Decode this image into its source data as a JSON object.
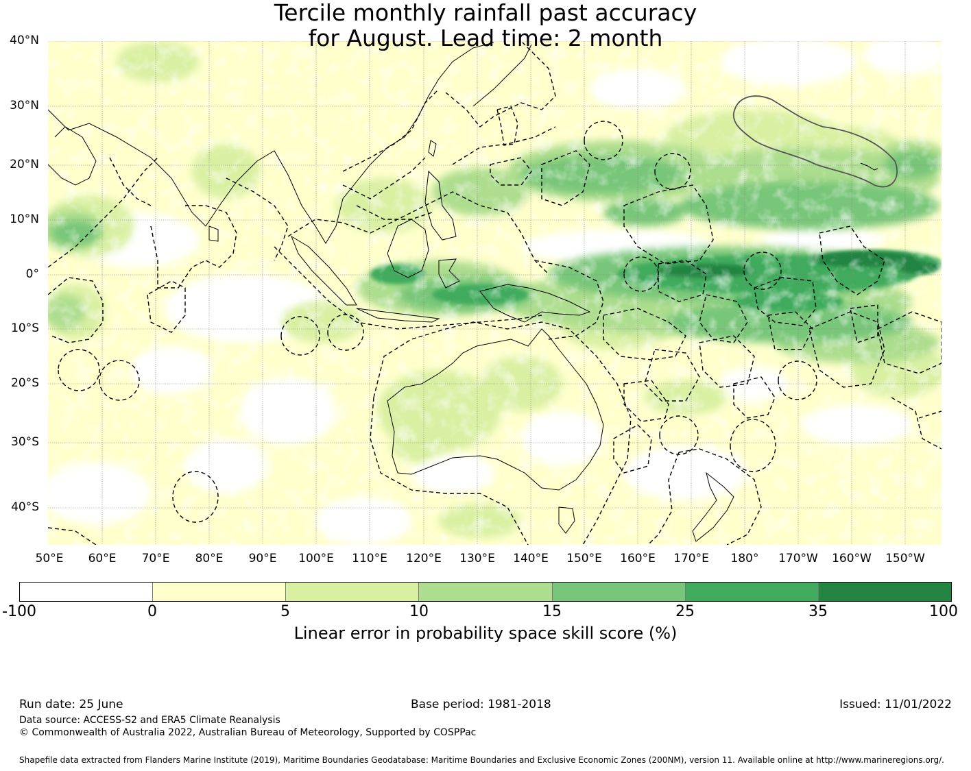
{
  "title": {
    "line1": "Tercile monthly rainfall past accuracy",
    "line2": "for August. Lead time: 2 month"
  },
  "map": {
    "lat_labels": [
      "40°N",
      "30°N",
      "20°N",
      "10°N",
      "0°",
      "10°S",
      "20°S",
      "30°S",
      "40°S"
    ],
    "lon_labels": [
      "50°E",
      "60°E",
      "70°E",
      "80°E",
      "90°E",
      "100°E",
      "110°E",
      "120°E",
      "130°E",
      "140°E",
      "150°E",
      "160°E",
      "170°E",
      "180°",
      "170°W",
      "160°W",
      "150°W"
    ],
    "lon_range": [
      50,
      207
    ],
    "lat_range": [
      -45,
      40
    ],
    "projection": "equirectangular",
    "grid": true,
    "eez_boundaries": "dashed",
    "highlighted_region": "Hawaii EEZ outline (solid grey)",
    "skill_colors": [
      "#ffffff",
      "#ffffcc",
      "#d9f0a3",
      "#addd8e",
      "#78c679",
      "#41ab5d",
      "#238443"
    ]
  },
  "colorbar": {
    "bounds": [
      "-100",
      "0",
      "5",
      "10",
      "15",
      "25",
      "35",
      "100"
    ],
    "colors": [
      "#ffffff",
      "#ffffcc",
      "#d9f0a3",
      "#addd8e",
      "#78c679",
      "#41ab5d",
      "#238443"
    ],
    "label": "Linear error in probability space skill score (%)"
  },
  "footer": {
    "run_date": "Run date: 25 June",
    "base_period": "Base period: 1981-2018",
    "issued": "Issued: 11/01/2022",
    "data_source": "Data source: ACCESS-S2 and ERA5 Climate Reanalysis",
    "copyright": "© Commonwealth of Australia 2022, Australian Bureau of Meteorology, Supported by COSPPac",
    "shapefile": "Shapefile data extracted from Flanders Marine Institute (2019), Maritime Boundaries Geodatabase: Maritime Boundaries and Exclusive Economic Zones (200NM), version 11. Available online at http://www.marineregions.org/."
  }
}
